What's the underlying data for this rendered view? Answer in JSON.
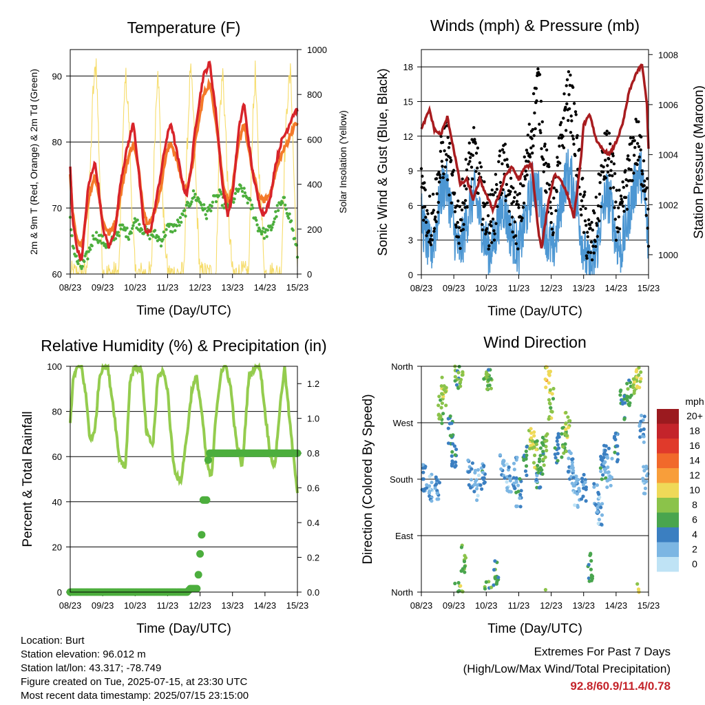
{
  "colors": {
    "t2m": "#d8242a",
    "t9m": "#f47a2a",
    "td": "#4cae3d",
    "solar": "#f6dc6a",
    "wind": "#4d97d3",
    "gust": "#000000",
    "pressure": "#a81c1f",
    "rh": "#94cc4e",
    "precip": "#4cae3d",
    "extremes": "#c4242b"
  },
  "time_ticks": [
    "08/23",
    "09/23",
    "10/23",
    "11/23",
    "12/23",
    "13/23",
    "14/23",
    "15/23"
  ],
  "chart_data": [
    {
      "id": "temperature",
      "type": "line",
      "title": "Temperature (F)",
      "xlabel": "",
      "ylabel": "2m & 9m T (Red, Orange) & 2m Td (Green)",
      "y2label": "Solar Insolation (Yellow)",
      "xlim": [
        0,
        7
      ],
      "ylim": [
        60,
        94
      ],
      "y2lim": [
        0,
        1000
      ],
      "yticks": [
        60,
        70,
        80,
        90
      ],
      "y2ticks": [
        0,
        200,
        400,
        600,
        800,
        1000
      ],
      "grid": true,
      "series": [
        {
          "key": "t2m",
          "x": [
            0,
            0.08,
            0.2,
            0.35,
            0.55,
            0.75,
            0.85,
            1.0,
            1.2,
            1.4,
            1.55,
            1.75,
            1.95,
            2.1,
            2.25,
            2.35,
            2.5,
            2.75,
            2.95,
            3.1,
            3.3,
            3.5,
            3.6,
            3.75,
            3.85,
            4.1,
            4.3,
            4.5,
            4.7,
            4.85,
            5.0,
            5.2,
            5.35,
            5.6,
            5.8,
            5.95,
            6.15,
            6.3,
            6.5,
            6.7,
            6.85,
            7.0
          ],
          "y": [
            76,
            68,
            64,
            62,
            73,
            77,
            74,
            67,
            64,
            67,
            74,
            79,
            83,
            76,
            68,
            66,
            67,
            74,
            80,
            83,
            78,
            73,
            72,
            77,
            82,
            90,
            92,
            84,
            73,
            69,
            72,
            82,
            86,
            76,
            71,
            69,
            71,
            76,
            80,
            82,
            84,
            85
          ]
        },
        {
          "key": "t9m",
          "x": [
            0,
            0.08,
            0.2,
            0.35,
            0.55,
            0.75,
            0.85,
            1.0,
            1.2,
            1.4,
            1.55,
            1.75,
            1.95,
            2.1,
            2.25,
            2.35,
            2.5,
            2.75,
            2.95,
            3.1,
            3.3,
            3.5,
            3.6,
            3.75,
            3.85,
            4.1,
            4.3,
            4.5,
            4.7,
            4.85,
            5.0,
            5.2,
            5.35,
            5.6,
            5.8,
            5.95,
            6.15,
            6.3,
            6.5,
            6.7,
            6.85,
            7.0
          ],
          "y": [
            75,
            69,
            65,
            64,
            71,
            75,
            73,
            68,
            66,
            68,
            72,
            77,
            80,
            76,
            70,
            68,
            68,
            72,
            78,
            80,
            77,
            73,
            73,
            76,
            80,
            87,
            89,
            83,
            74,
            71,
            73,
            80,
            83,
            76,
            72,
            71,
            72,
            75,
            78,
            80,
            82,
            83
          ]
        },
        {
          "key": "td",
          "x": [
            0,
            0.1,
            0.2,
            0.35,
            0.55,
            0.75,
            1.0,
            1.2,
            1.4,
            1.6,
            1.8,
            2.0,
            2.2,
            2.4,
            2.6,
            2.8,
            3.0,
            3.2,
            3.4,
            3.6,
            3.8,
            4.0,
            4.2,
            4.4,
            4.6,
            4.8,
            5.0,
            5.2,
            5.4,
            5.6,
            5.8,
            6.0,
            6.2,
            6.4,
            6.6,
            6.8,
            7.0
          ],
          "y": [
            68,
            64,
            62,
            61,
            63,
            66,
            65,
            64,
            66,
            67,
            66,
            68,
            67,
            66,
            66,
            65,
            67,
            67,
            68,
            70,
            72,
            71,
            69,
            71,
            72,
            70,
            71,
            73,
            72,
            70,
            67,
            66,
            67,
            70,
            71,
            68,
            63
          ]
        },
        {
          "key": "solar",
          "x": [
            0,
            0.5,
            0.6,
            0.7,
            0.8,
            0.9,
            1.0,
            1.5,
            1.6,
            1.7,
            1.8,
            1.9,
            2.0,
            2.5,
            2.6,
            2.7,
            2.8,
            2.9,
            3.0,
            3.5,
            3.6,
            3.7,
            3.8,
            3.9,
            4.0,
            4.5,
            4.6,
            4.7,
            4.8,
            4.9,
            5.0,
            5.5,
            5.6,
            5.7,
            5.8,
            5.9,
            6.0,
            6.5,
            6.6,
            6.7,
            6.8,
            6.9,
            7.0
          ],
          "y": [
            0,
            0,
            400,
            800,
            950,
            500,
            0,
            0,
            500,
            900,
            700,
            300,
            0,
            0,
            600,
            950,
            500,
            200,
            0,
            0,
            550,
            920,
            700,
            300,
            0,
            0,
            700,
            900,
            600,
            200,
            0,
            0,
            600,
            900,
            500,
            250,
            0,
            0,
            500,
            800,
            900,
            400,
            0
          ]
        }
      ]
    },
    {
      "id": "winds",
      "type": "scatter",
      "title": "Winds (mph) & Pressure (mb)",
      "xlabel": "",
      "ylabel": "Sonic Wind & Gust (Blue, Black)",
      "y2label": "Station Pressure (Maroon)",
      "xlim": [
        0,
        7
      ],
      "ylim": [
        0,
        19.5
      ],
      "y2lim": [
        999.2,
        1008.2
      ],
      "yticks": [
        0,
        3,
        6,
        9,
        12,
        15,
        18
      ],
      "y2ticks": [
        1000,
        1002,
        1004,
        1006,
        1008
      ],
      "grid": true,
      "series": [
        {
          "key": "wind",
          "x": [
            0,
            0.15,
            0.3,
            0.45,
            0.6,
            0.75,
            0.9,
            1.05,
            1.2,
            1.35,
            1.5,
            1.65,
            1.8,
            1.95,
            2.1,
            2.25,
            2.4,
            2.55,
            2.7,
            2.85,
            3.0,
            3.15,
            3.3,
            3.45,
            3.6,
            3.75,
            3.9,
            4.05,
            4.2,
            4.35,
            4.5,
            4.65,
            4.8,
            4.95,
            5.1,
            5.25,
            5.4,
            5.55,
            5.7,
            5.85,
            6.0,
            6.15,
            6.3,
            6.45,
            6.6,
            6.75,
            6.9,
            7.0
          ],
          "y": [
            5,
            3,
            2,
            4,
            7,
            8,
            6,
            3,
            2,
            4,
            6,
            7,
            5,
            3,
            2,
            3,
            5,
            6,
            4,
            3,
            2,
            4,
            6,
            8,
            7,
            5,
            3,
            2,
            4,
            7,
            9,
            8,
            6,
            3,
            1,
            0.5,
            2,
            5,
            7,
            6,
            3,
            2,
            4,
            6,
            8,
            9,
            6,
            2
          ]
        },
        {
          "key": "gust",
          "x": [
            0,
            0.15,
            0.3,
            0.45,
            0.6,
            0.75,
            0.9,
            1.05,
            1.2,
            1.35,
            1.5,
            1.65,
            1.8,
            1.95,
            2.1,
            2.25,
            2.4,
            2.55,
            2.7,
            2.85,
            3.0,
            3.15,
            3.3,
            3.45,
            3.6,
            3.75,
            3.9,
            4.05,
            4.2,
            4.35,
            4.5,
            4.65,
            4.8,
            4.95,
            5.1,
            5.25,
            5.4,
            5.55,
            5.7,
            5.85,
            6.0,
            6.15,
            6.3,
            6.45,
            6.6,
            6.75,
            6.9,
            7.0
          ],
          "y": [
            9,
            6,
            5,
            7,
            10,
            12,
            9,
            6,
            5,
            8,
            10,
            11,
            8,
            6,
            5,
            6,
            9,
            10,
            7,
            6,
            5,
            8,
            11,
            14,
            17,
            12,
            8,
            6,
            9,
            13,
            16,
            15,
            11,
            7,
            4,
            3,
            5,
            9,
            11,
            10,
            6,
            5,
            8,
            10,
            12,
            11,
            9,
            5
          ]
        },
        {
          "key": "pressure",
          "x": [
            0,
            0.25,
            0.4,
            0.6,
            0.8,
            1.0,
            1.2,
            1.4,
            1.6,
            1.8,
            2.0,
            2.2,
            2.4,
            2.6,
            2.8,
            3.0,
            3.2,
            3.4,
            3.6,
            3.7,
            3.9,
            4.1,
            4.3,
            4.5,
            4.7,
            4.9,
            5.0,
            5.2,
            5.4,
            5.6,
            5.8,
            6.0,
            6.2,
            6.4,
            6.6,
            6.8,
            6.95,
            7.0
          ],
          "y": [
            1005.0,
            1005.8,
            1005.0,
            1004.8,
            1005.5,
            1004.2,
            1002.8,
            1003.0,
            1002.2,
            1003.0,
            1002.4,
            1001.8,
            1002.4,
            1003.2,
            1003.5,
            1003.0,
            1003.5,
            1003.6,
            1001.0,
            1000.2,
            1002.0,
            1003.2,
            1003.0,
            1002.4,
            1001.5,
            1003.6,
            1005.2,
            1005.6,
            1004.5,
            1004.2,
            1004.0,
            1004.5,
            1005.2,
            1006.5,
            1007.2,
            1007.6,
            1006.0,
            1004.2
          ]
        }
      ]
    },
    {
      "id": "humidity",
      "type": "line",
      "title": "Relative Humidity (%) & Precipitation (in)",
      "xlabel": "",
      "ylabel": "Percent & Total Rainfall",
      "xlim": [
        0,
        7
      ],
      "ylim": [
        0,
        100
      ],
      "y2lim": [
        0,
        1.3
      ],
      "yticks": [
        0,
        20,
        40,
        60,
        80,
        100
      ],
      "y2ticks": [
        0.0,
        0.2,
        0.4,
        0.6,
        0.8,
        1.0,
        1.2
      ],
      "grid": true,
      "series": [
        {
          "key": "rh",
          "x": [
            0,
            0.1,
            0.2,
            0.35,
            0.5,
            0.6,
            0.75,
            0.9,
            1.0,
            1.15,
            1.35,
            1.5,
            1.7,
            1.85,
            2.0,
            2.2,
            2.35,
            2.55,
            2.7,
            2.85,
            3.0,
            3.1,
            3.2,
            3.4,
            3.6,
            3.75,
            3.9,
            4.05,
            4.2,
            4.35,
            4.5,
            4.65,
            4.8,
            4.95,
            5.1,
            5.3,
            5.5,
            5.7,
            5.85,
            6.0,
            6.15,
            6.3,
            6.45,
            6.6,
            6.8,
            7.0
          ],
          "y": [
            76,
            95,
            99,
            100,
            85,
            68,
            70,
            95,
            100,
            100,
            80,
            60,
            55,
            95,
            100,
            98,
            70,
            65,
            95,
            98,
            90,
            70,
            55,
            48,
            70,
            90,
            95,
            80,
            58,
            50,
            80,
            98,
            100,
            90,
            68,
            55,
            95,
            100,
            100,
            80,
            62,
            55,
            80,
            100,
            70,
            45
          ]
        },
        {
          "key": "precip",
          "x": [
            0,
            3.6,
            3.7,
            3.8,
            3.9,
            3.95,
            4.0,
            4.05,
            4.1,
            4.15,
            4.2,
            4.25,
            4.3,
            4.35,
            4.45,
            4.6,
            4.8,
            5.5,
            6.2,
            7.0
          ],
          "y": [
            0,
            0,
            0.02,
            0.02,
            0.02,
            0.1,
            0.22,
            0.33,
            0.53,
            0.53,
            0.53,
            0.76,
            0.8,
            0.8,
            0.8,
            0.8,
            0.8,
            0.8,
            0.8,
            0.8
          ]
        }
      ]
    },
    {
      "id": "wind_direction",
      "type": "scatter",
      "title": "Wind Direction",
      "xlabel": "",
      "ylabel": "Direction (Colored By Speed)",
      "xlim": [
        0,
        7
      ],
      "ylim": [
        0,
        360
      ],
      "yticks": [
        "North",
        "East",
        "South",
        "West",
        "North"
      ],
      "grid": true,
      "legend": {
        "title": "mph",
        "labels": [
          "20+",
          "18",
          "16",
          "14",
          "12",
          "10",
          "8",
          "6",
          "4",
          "2",
          "0"
        ],
        "colors": [
          "#9b1a1f",
          "#c4242b",
          "#e03a2b",
          "#f1692b",
          "#f89e3a",
          "#efd958",
          "#8bc34a",
          "#49a54e",
          "#3b7fc1",
          "#7cb6e3",
          "#bfe3f5"
        ]
      },
      "series": [
        {
          "key": "direction",
          "x": [
            0.1,
            0.3,
            0.5,
            0.6,
            0.7,
            0.9,
            1.0,
            1.1,
            1.2,
            1.3,
            1.5,
            1.7,
            1.9,
            2.0,
            2.1,
            2.3,
            2.5,
            2.7,
            2.9,
            3.0,
            3.2,
            3.4,
            3.5,
            3.6,
            3.7,
            3.8,
            3.9,
            4.0,
            4.2,
            4.4,
            4.5,
            4.6,
            4.7,
            4.8,
            5.0,
            5.2,
            5.4,
            5.5,
            5.6,
            5.7,
            5.8,
            6.0,
            6.2,
            6.4,
            6.6,
            6.7,
            6.8,
            6.9
          ],
          "y": [
            180,
            170,
            160,
            290,
            320,
            260,
            220,
            350,
            345,
            50,
            190,
            170,
            180,
            360,
            345,
            30,
            200,
            180,
            190,
            160,
            210,
            250,
            220,
            190,
            210,
            230,
            340,
            300,
            230,
            240,
            270,
            200,
            180,
            160,
            170,
            40,
            150,
            130,
            200,
            210,
            190,
            230,
            300,
            320,
            340,
            350,
            260,
            180
          ],
          "speed": [
            3,
            2,
            3,
            7,
            8,
            5,
            4,
            6,
            8,
            7,
            3,
            2,
            4,
            7,
            6,
            6,
            3,
            2,
            3,
            4,
            5,
            9,
            8,
            4,
            6,
            7,
            10,
            8,
            5,
            6,
            9,
            3,
            2,
            2,
            3,
            6,
            3,
            2,
            4,
            3,
            2,
            4,
            5,
            6,
            8,
            9,
            3,
            2
          ]
        }
      ]
    }
  ],
  "info": {
    "location": "Location: Burt",
    "elevation": "Station elevation: 96.012 m",
    "latlon": "Station lat/lon: 43.317; -78.749",
    "created": "Figure created on Tue, 2025-07-15, at 23:30 UTC",
    "recent": "Most recent data timestamp: 2025/07/15 23:15:00"
  },
  "extremes": {
    "line1": "Extremes For Past 7 Days",
    "line2": "(High/Low/Max Wind/Total Precipitation)",
    "values": "92.8/60.9/11.4/0.78"
  },
  "xaxis_label": "Time (Day/UTC)"
}
